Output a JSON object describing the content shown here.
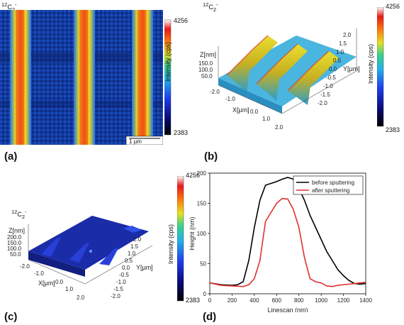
{
  "panels": {
    "a": {
      "label": "(a)",
      "species": "12C2-",
      "colorbar": {
        "max": "4256",
        "min": "2383",
        "title": "Intensity (cps)"
      },
      "scalebar": "1 µm"
    },
    "b": {
      "label": "(b)",
      "species": "12C2-",
      "colorbar": {
        "max": "4256",
        "min": "2383",
        "title": "Intensity (cps)"
      },
      "axes": {
        "z_title": "Z[nm]",
        "z_ticks": [
          "150.0",
          "100.0",
          "50.0"
        ],
        "x_title": "X[µm]",
        "x_ticks": [
          "-2.0",
          "-1.0",
          "0.0",
          "1.0",
          "2.0"
        ],
        "y_title": "Y[µm]",
        "y_ticks": [
          "2.0",
          "1.5",
          "1.0",
          "0.5",
          "0.0",
          "-0.5",
          "-1.0",
          "-1.5",
          "-2.0"
        ]
      }
    },
    "c": {
      "label": "(c)",
      "species": "12C2-",
      "colorbar": {
        "max": "4256",
        "min": "2383",
        "title": "Intensity (cps)"
      },
      "axes": {
        "z_title": "Z[nm]",
        "z_ticks": [
          "200.0",
          "150.0",
          "100.0",
          "50.0"
        ],
        "x_title": "X[µm]",
        "x_ticks": [
          "-2.0",
          "-1.0",
          "0.0",
          "1.0",
          "2.0"
        ],
        "y_title": "Y[µm]",
        "y_ticks": [
          "2.0",
          "1.5",
          "1.0",
          "0.5",
          "0.0",
          "-0.5",
          "-1.0",
          "-1.5",
          "-2.0"
        ]
      }
    },
    "d": {
      "label": "(d)"
    }
  },
  "chart_data": {
    "type": "line",
    "xlabel": "Linescan (nm)",
    "ylabel": "Height (nm)",
    "xlim": [
      0,
      1400
    ],
    "ylim": [
      0,
      200
    ],
    "xticks": [
      0,
      200,
      400,
      600,
      800,
      1000,
      1200,
      1400
    ],
    "yticks": [
      0,
      50,
      100,
      150,
      200
    ],
    "legend_position": "top-right",
    "series": [
      {
        "name": "before sputtering",
        "color": "#000000",
        "x": [
          0,
          100,
          200,
          250,
          300,
          350,
          400,
          450,
          500,
          550,
          600,
          650,
          700,
          750,
          800,
          850,
          900,
          950,
          1000,
          1050,
          1100,
          1150,
          1200,
          1250,
          1300,
          1350,
          1400
        ],
        "y": [
          18,
          15,
          14,
          15,
          20,
          55,
          110,
          155,
          180,
          183,
          186,
          190,
          193,
          190,
          175,
          155,
          130,
          110,
          90,
          70,
          55,
          40,
          30,
          22,
          17,
          16,
          17
        ]
      },
      {
        "name": "after sputtering",
        "color": "#e03030",
        "x": [
          0,
          100,
          200,
          300,
          350,
          400,
          450,
          500,
          550,
          600,
          650,
          700,
          750,
          800,
          850,
          900,
          950,
          1000,
          1050,
          1100,
          1150,
          1200,
          1300,
          1400
        ],
        "y": [
          18,
          14,
          13,
          12,
          15,
          25,
          55,
          120,
          135,
          150,
          158,
          157,
          140,
          110,
          60,
          25,
          20,
          18,
          13,
          12,
          14,
          15,
          17,
          19
        ]
      }
    ]
  }
}
